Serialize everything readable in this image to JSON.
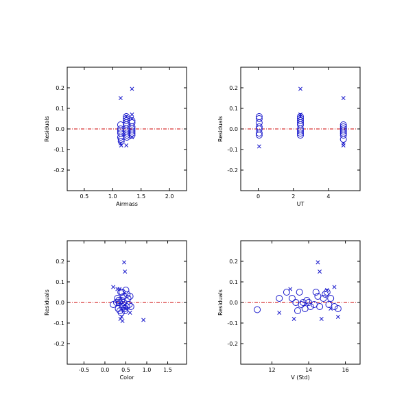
{
  "colors": {
    "marker": "#1a1acc",
    "zero_line": "#cc0000",
    "axes": "#000000"
  },
  "chart_data": [
    {
      "type": "scatter",
      "xlabel": "Airmass",
      "ylabel": "Residuals",
      "xlim": [
        0.2,
        2.3
      ],
      "ylim": [
        -0.3,
        0.3
      ],
      "xticks": [
        0.5,
        1.0,
        1.5,
        2.0
      ],
      "xtick_labels": [
        "0.5",
        "1.0",
        "1.5",
        "2.0"
      ],
      "yticks": [
        -0.2,
        -0.1,
        0.0,
        0.1,
        0.2
      ],
      "ytick_labels": [
        "-0.2",
        "-0.1",
        "0.0",
        "0.1",
        "0.2"
      ],
      "zero_line": 0,
      "series": [
        {
          "marker": "circle",
          "x": [
            1.14,
            1.14,
            1.14,
            1.14,
            1.14,
            1.15,
            1.15,
            1.24,
            1.24,
            1.24,
            1.24,
            1.24,
            1.24,
            1.24,
            1.25,
            1.25,
            1.25,
            1.34,
            1.34,
            1.34,
            1.34,
            1.34,
            1.34,
            1.34
          ],
          "y": [
            0.02,
            0.0,
            -0.01,
            -0.02,
            -0.04,
            -0.05,
            -0.06,
            0.06,
            0.05,
            0.04,
            0.03,
            0.02,
            0.0,
            -0.01,
            -0.02,
            -0.03,
            -0.04,
            0.04,
            0.03,
            0.01,
            0.0,
            -0.01,
            -0.02,
            -0.03
          ]
        },
        {
          "marker": "cross",
          "x": [
            1.14,
            1.14,
            1.15,
            1.24,
            1.24,
            1.34,
            1.34,
            1.34,
            1.34
          ],
          "y": [
            0.15,
            -0.07,
            -0.08,
            0.06,
            -0.08,
            0.195,
            0.07,
            0.05,
            -0.04
          ]
        }
      ]
    },
    {
      "type": "scatter",
      "xlabel": "UT",
      "ylabel": "Residuals",
      "xlim": [
        -1.0,
        5.8
      ],
      "ylim": [
        -0.3,
        0.3
      ],
      "xticks": [
        0,
        2,
        4
      ],
      "xtick_labels": [
        "0",
        "2",
        "4"
      ],
      "yticks": [
        -0.2,
        -0.1,
        0.0,
        0.1,
        0.2
      ],
      "ytick_labels": [
        "-0.2",
        "-0.1",
        "0.0",
        "0.1",
        "0.2"
      ],
      "zero_line": 0,
      "series": [
        {
          "marker": "circle",
          "x": [
            0.05,
            0.05,
            0.05,
            0.05,
            0.05,
            0.05,
            0.05,
            2.4,
            2.4,
            2.4,
            2.4,
            2.4,
            2.4,
            2.4,
            2.4,
            2.4,
            4.85,
            4.85,
            4.85,
            4.85,
            4.85,
            4.85,
            4.85
          ],
          "y": [
            0.06,
            0.05,
            0.03,
            0.01,
            0.0,
            -0.02,
            -0.03,
            0.06,
            0.05,
            0.04,
            0.03,
            0.02,
            0.0,
            -0.01,
            -0.02,
            -0.03,
            0.02,
            0.01,
            0.0,
            -0.01,
            -0.02,
            -0.03,
            -0.05
          ]
        },
        {
          "marker": "cross",
          "x": [
            0.05,
            2.4,
            2.4,
            2.4,
            4.85,
            4.85,
            4.85
          ],
          "y": [
            -0.085,
            0.195,
            0.07,
            0.06,
            0.15,
            -0.07,
            -0.08
          ]
        }
      ]
    },
    {
      "type": "scatter",
      "xlabel": "Color",
      "ylabel": "Residuals",
      "xlim": [
        -0.9,
        1.95
      ],
      "ylim": [
        -0.3,
        0.3
      ],
      "xticks": [
        -0.5,
        0.0,
        0.5,
        1.0,
        1.5
      ],
      "xtick_labels": [
        "-0.5",
        "0.0",
        "0.5",
        "1.0",
        "1.5"
      ],
      "yticks": [
        -0.2,
        -0.1,
        0.0,
        0.1,
        0.2
      ],
      "ytick_labels": [
        "-0.2",
        "-0.1",
        "0.0",
        "0.1",
        "0.2"
      ],
      "zero_line": 0,
      "series": [
        {
          "marker": "circle",
          "x": [
            0.2,
            0.3,
            0.32,
            0.35,
            0.38,
            0.4,
            0.42,
            0.45,
            0.48,
            0.5,
            0.52,
            0.55,
            0.58,
            0.6,
            0.36,
            0.41,
            0.44,
            0.47,
            0.33,
            0.39,
            0.53,
            0.62,
            0.28,
            0.43
          ],
          "y": [
            -0.01,
            0.02,
            -0.03,
            0.0,
            0.05,
            0.01,
            -0.02,
            0.03,
            -0.04,
            0.06,
            -0.02,
            0.02,
            -0.01,
            0.03,
            -0.04,
            0.05,
            0.0,
            -0.03,
            0.01,
            -0.05,
            0.04,
            -0.02,
            0.0,
            -0.01
          ]
        },
        {
          "marker": "cross",
          "x": [
            0.46,
            0.48,
            0.2,
            0.3,
            0.35,
            0.4,
            0.5,
            0.92,
            0.37,
            0.42,
            0.6
          ],
          "y": [
            0.195,
            0.15,
            0.075,
            0.065,
            0.065,
            -0.07,
            -0.03,
            -0.085,
            -0.08,
            -0.09,
            -0.05
          ]
        }
      ]
    },
    {
      "type": "scatter",
      "xlabel": "V (Std)",
      "ylabel": "Residuals",
      "xlim": [
        10.3,
        16.8
      ],
      "ylim": [
        -0.3,
        0.3
      ],
      "xticks": [
        12,
        14,
        16
      ],
      "xtick_labels": [
        "12",
        "14",
        "16"
      ],
      "yticks": [
        -0.2,
        -0.1,
        0.0,
        0.1,
        0.2
      ],
      "ytick_labels": [
        "-0.2",
        "-0.1",
        "0.0",
        "0.1",
        "0.2"
      ],
      "zero_line": 0,
      "series": [
        {
          "marker": "circle",
          "x": [
            11.2,
            12.4,
            12.8,
            13.1,
            13.3,
            13.5,
            13.6,
            13.8,
            13.9,
            14.1,
            14.3,
            14.4,
            14.5,
            14.6,
            14.8,
            14.9,
            15.1,
            15.2,
            15.4,
            15.6,
            13.4,
            14.0,
            15.0,
            13.7
          ],
          "y": [
            -0.035,
            0.02,
            0.05,
            0.02,
            0.0,
            0.05,
            -0.01,
            -0.03,
            0.01,
            -0.02,
            -0.01,
            0.05,
            0.03,
            -0.02,
            0.02,
            0.04,
            -0.01,
            0.02,
            -0.02,
            -0.03,
            -0.04,
            0.0,
            0.05,
            0.0
          ]
        },
        {
          "marker": "cross",
          "x": [
            12.4,
            13.0,
            13.2,
            14.5,
            14.6,
            14.7,
            15.0,
            15.4,
            15.6,
            15.2
          ],
          "y": [
            -0.05,
            0.065,
            -0.08,
            0.195,
            0.15,
            -0.08,
            0.06,
            0.075,
            -0.07,
            -0.03
          ]
        }
      ]
    }
  ]
}
